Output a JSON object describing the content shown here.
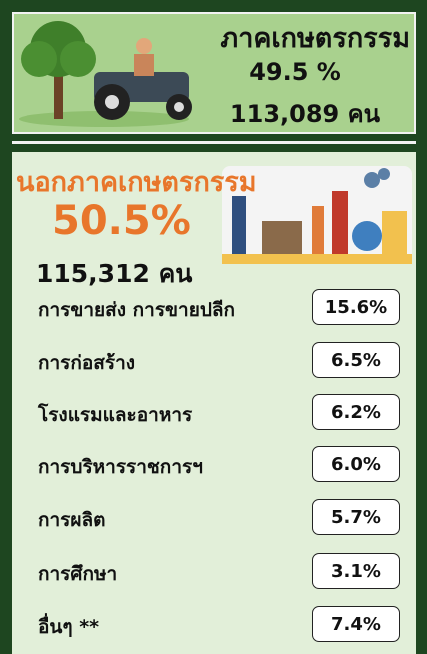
{
  "agriculture": {
    "title": "ภาคเกษตรกรรม",
    "percent": "49.5 %",
    "count": "113,089 คน"
  },
  "non_agriculture": {
    "title": "นอกภาคเกษตรกรรม",
    "percent": "50.5%",
    "count": "115,312 คน",
    "rows": [
      {
        "label": "การขายส่ง การขายปลีก",
        "value": "15.6%"
      },
      {
        "label": "การก่อสร้าง",
        "value": "6.5%"
      },
      {
        "label": "โรงแรมและอาหาร",
        "value": "6.2%"
      },
      {
        "label": "การบริหารราชการฯ",
        "value": "6.0%"
      },
      {
        "label": "การผลิต",
        "value": "5.7%"
      },
      {
        "label": "การศึกษา",
        "value": "3.1%"
      },
      {
        "label": "อื่นๆ **",
        "value": "7.4%"
      }
    ]
  }
}
